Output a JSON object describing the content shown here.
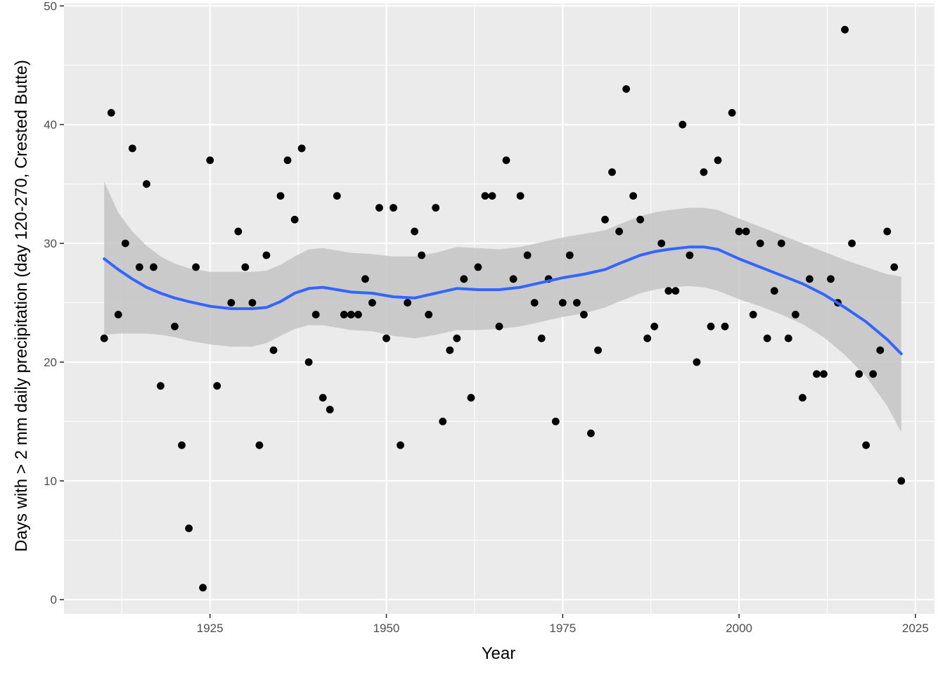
{
  "chart_data": {
    "type": "scatter",
    "title": "",
    "xlabel": "Year",
    "ylabel": "Days with > 2 mm daily precipitation (day 120-270, Crested Butte)",
    "xlim": [
      1904.3,
      2027.7
    ],
    "ylim": [
      -1.2,
      50.2
    ],
    "x_ticks": [
      1925,
      1950,
      1975,
      2000,
      2025
    ],
    "y_ticks": [
      0,
      10,
      20,
      30,
      40,
      50
    ],
    "x_tick_labels": [
      "1925",
      "1950",
      "1975",
      "2000",
      "2025"
    ],
    "y_tick_labels": [
      "0",
      "10",
      "20",
      "30",
      "40",
      "50"
    ],
    "grid": true,
    "legend": "none",
    "colors": {
      "panel": "#EBEBEB",
      "grid": "#FFFFFF",
      "points": "#000000",
      "smooth_line": "#3366FF",
      "ribbon": "#C4C4C4"
    },
    "series": [
      {
        "type": "points",
        "x": [
          1910,
          1911,
          1912,
          1913,
          1914,
          1915,
          1916,
          1917,
          1918,
          1920,
          1921,
          1922,
          1923,
          1924,
          1925,
          1926,
          1928,
          1929,
          1930,
          1931,
          1932,
          1933,
          1934,
          1935,
          1936,
          1937,
          1938,
          1939,
          1940,
          1941,
          1942,
          1943,
          1944,
          1945,
          1946,
          1947,
          1948,
          1949,
          1950,
          1951,
          1952,
          1953,
          1954,
          1955,
          1956,
          1957,
          1958,
          1959,
          1960,
          1961,
          1962,
          1963,
          1964,
          1965,
          1966,
          1967,
          1968,
          1969,
          1970,
          1971,
          1972,
          1973,
          1974,
          1975,
          1976,
          1977,
          1978,
          1979,
          1980,
          1981,
          1982,
          1983,
          1984,
          1985,
          1986,
          1987,
          1988,
          1989,
          1990,
          1991,
          1992,
          1993,
          1994,
          1995,
          1996,
          1997,
          1998,
          1999,
          2000,
          2001,
          2002,
          2003,
          2004,
          2005,
          2006,
          2007,
          2008,
          2009,
          2010,
          2011,
          2012,
          2013,
          2014,
          2015,
          2016,
          2017,
          2018,
          2019,
          2020,
          2021,
          2022,
          2023
        ],
        "y": [
          22,
          41,
          24,
          30,
          38,
          28,
          35,
          28,
          18,
          23,
          13,
          6,
          28,
          1,
          37,
          18,
          25,
          31,
          28,
          25,
          13,
          29,
          21,
          34,
          37,
          32,
          38,
          20,
          24,
          17,
          16,
          34,
          24,
          24,
          24,
          27,
          25,
          33,
          22,
          33,
          13,
          25,
          31,
          29,
          24,
          33,
          15,
          21,
          22,
          27,
          17,
          28,
          34,
          34,
          23,
          37,
          27,
          34,
          29,
          25,
          22,
          27,
          15,
          25,
          29,
          25,
          24,
          14,
          21,
          32,
          36,
          31,
          43,
          34,
          32,
          22,
          23,
          30,
          26,
          26,
          40,
          29,
          20,
          36,
          23,
          37,
          23,
          41,
          31,
          31,
          24,
          30,
          22,
          26,
          30,
          22,
          24,
          17,
          27,
          19,
          19,
          27,
          25,
          48,
          30,
          19,
          13,
          19,
          21,
          31,
          28,
          10
        ]
      },
      {
        "type": "loess",
        "x": [
          1910,
          1912,
          1914,
          1916,
          1918,
          1920,
          1922,
          1925,
          1928,
          1931,
          1933,
          1935,
          1937,
          1939,
          1941,
          1943,
          1945,
          1948,
          1951,
          1954,
          1957,
          1960,
          1963,
          1966,
          1969,
          1972,
          1975,
          1978,
          1981,
          1983,
          1986,
          1988,
          1990,
          1993,
          1995,
          1997,
          2000,
          2003,
          2006,
          2009,
          2012,
          2015,
          2018,
          2021,
          2023
        ],
        "y": [
          28.7,
          27.8,
          27.0,
          26.3,
          25.8,
          25.4,
          25.1,
          24.7,
          24.5,
          24.5,
          24.6,
          25.1,
          25.8,
          26.2,
          26.3,
          26.1,
          25.9,
          25.8,
          25.5,
          25.4,
          25.8,
          26.2,
          26.1,
          26.1,
          26.3,
          26.7,
          27.1,
          27.4,
          27.8,
          28.3,
          29.0,
          29.3,
          29.5,
          29.7,
          29.7,
          29.5,
          28.7,
          28.0,
          27.3,
          26.6,
          25.7,
          24.6,
          23.4,
          21.9,
          20.7
        ],
        "lower": [
          22.3,
          22.4,
          22.4,
          22.4,
          22.3,
          22.1,
          21.8,
          21.5,
          21.3,
          21.3,
          21.6,
          22.2,
          22.8,
          23.1,
          23.1,
          22.9,
          22.7,
          22.6,
          22.2,
          22.0,
          22.3,
          22.7,
          22.7,
          22.8,
          23.0,
          23.4,
          23.8,
          24.1,
          24.6,
          25.1,
          25.8,
          26.1,
          26.3,
          26.4,
          26.3,
          26.0,
          25.3,
          24.7,
          24.0,
          23.2,
          22.1,
          20.6,
          18.8,
          16.3,
          14.1
        ],
        "upper": [
          35.2,
          32.6,
          31.0,
          29.8,
          28.9,
          28.3,
          27.9,
          27.6,
          27.6,
          27.6,
          27.7,
          28.2,
          28.9,
          29.5,
          29.6,
          29.4,
          29.2,
          29.1,
          28.9,
          28.9,
          29.2,
          29.7,
          29.6,
          29.5,
          29.7,
          30.1,
          30.5,
          30.8,
          31.1,
          31.6,
          32.3,
          32.6,
          32.8,
          33.0,
          33.0,
          32.8,
          32.1,
          31.4,
          30.7,
          30.0,
          29.3,
          28.6,
          28.0,
          27.4,
          27.2
        ]
      }
    ]
  }
}
